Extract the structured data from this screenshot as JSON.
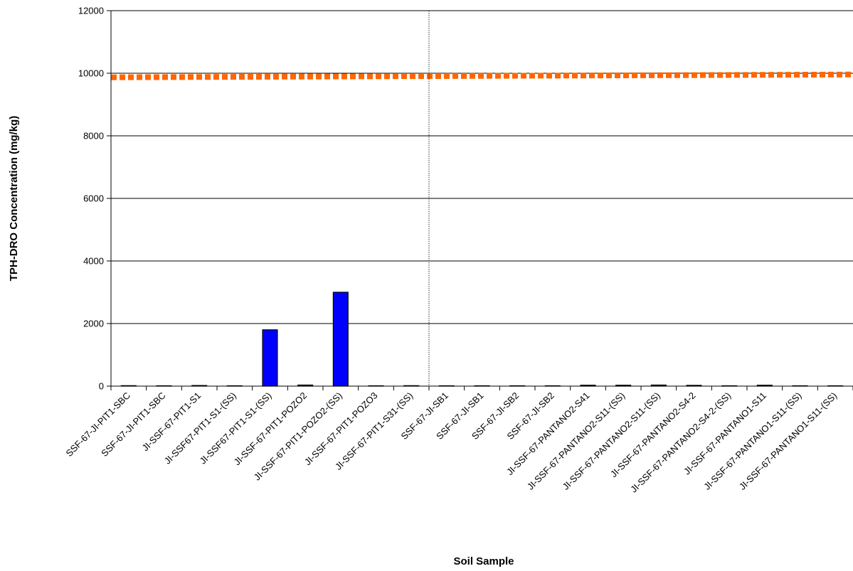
{
  "chart_data": {
    "type": "bar",
    "title": "",
    "xlabel": "Soil Sample",
    "ylabel": "TPH-DRO Concentration (mg/kg)",
    "ylim": [
      0,
      12000
    ],
    "yticks": [
      0,
      2000,
      4000,
      6000,
      8000,
      10000,
      12000
    ],
    "grid": true,
    "legend": "none",
    "categories": [
      "SSF-67-JI-PIT1-SBC",
      "SSF-67-JI-PIT1-SBC",
      "JI-SSF-67-PIT1-S1",
      "JI-SSF67-PIT1-S1-(SS)",
      "JI-SSF67-PIT1-S1-(SS)",
      "JI-SSF-67-PIT1-POZO2",
      "JI-SSF-67-PIT1-POZO2-(SS)",
      "JI-SSF-67-PIT1-POZO3",
      "JI-SSF-67-PIT1-S31-(SS)",
      "SSF-67-JI-SB1",
      "SSF-67-JI-SB1",
      "SSF-67-JI-SB2",
      "SSF-67-JI-SB2",
      "JI-SSF-67-PANTANO2-S41",
      "JI-SSF-67-PANTANO2-S11-(SS)",
      "JI-SSF-67-PANTANO2-S11-(SS)",
      "JI-SSF-67-PANTANO2-S4-2",
      "JI-SSF-67-PANTANO2-S4-2-(SS)",
      "JI-SSF-67-PANTANO1-S11",
      "JI-SSF-67-PANTANO1-S11-(SS)",
      "JI-SSF-67-PANTANO1-S11-(SS)"
    ],
    "series": [
      {
        "values": [
          15,
          0,
          20,
          0,
          1800,
          35,
          3000,
          0,
          15,
          0,
          0,
          0,
          0,
          30,
          30,
          35,
          25,
          0,
          30,
          0,
          0
        ]
      }
    ],
    "reference_line": {
      "value_start": 9870,
      "value_end": 9960,
      "style": "dotted"
    },
    "separator_after_category_index": 8,
    "colors": {
      "bar": "#0000ff",
      "bar_border": "#000000",
      "reference_line": "#ff6600",
      "grid": "#000000"
    }
  }
}
